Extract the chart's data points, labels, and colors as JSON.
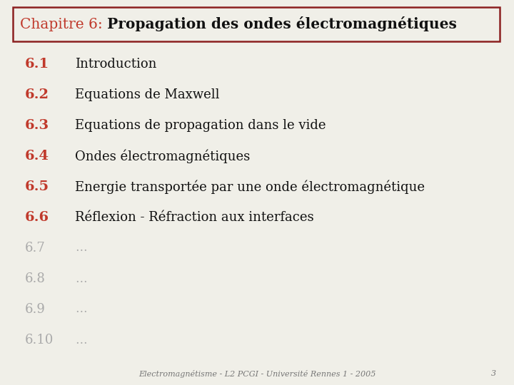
{
  "background_color": "#f0efe8",
  "border_color": "#8b2020",
  "title_prefix": "Chapitre 6: ",
  "title_bold": "Propagation des ondes électromagnétiques",
  "title_prefix_color": "#c0392b",
  "title_bold_color": "#111111",
  "section_number_color": "#c0392b",
  "section_text_color": "#111111",
  "dim_color": "#aaaaaa",
  "sections": [
    {
      "num": "6.1",
      "text": "Introduction",
      "dim": false
    },
    {
      "num": "6.2",
      "text": "Equations de Maxwell",
      "dim": false
    },
    {
      "num": "6.3",
      "text": "Equations de propagation dans le vide",
      "dim": false
    },
    {
      "num": "6.4",
      "text": "Ondes électromagnétiques",
      "dim": false
    },
    {
      "num": "6.5",
      "text": "Energie transportée par une onde électromagnétique",
      "dim": false
    },
    {
      "num": "6.6",
      "text": "Réflexion - Réfraction aux interfaces",
      "dim": false
    },
    {
      "num": "6.7",
      "text": "…",
      "dim": true
    },
    {
      "num": "6.8",
      "text": "…",
      "dim": true
    },
    {
      "num": "6.9",
      "text": "…",
      "dim": true
    },
    {
      "num": "6.10",
      "text": "…",
      "dim": true
    }
  ],
  "footer_text": "Electromagnétisme - L2 PCGI - Université Rennes 1 - 2005",
  "footer_page": "3",
  "footer_color": "#777777",
  "title_fontsize": 14.5,
  "section_num_fontsize": 14,
  "section_text_fontsize": 13,
  "dim_num_fontsize": 13,
  "dim_text_fontsize": 12,
  "footer_fontsize": 8
}
